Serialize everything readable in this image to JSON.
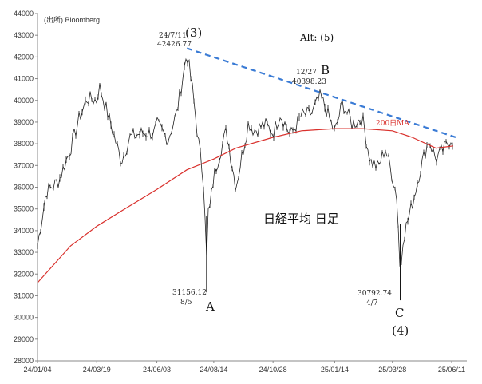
{
  "chart_data": {
    "type": "line",
    "title": "日経平均 日足",
    "source": "(出所) Bloomberg",
    "ylim": [
      28000,
      44000
    ],
    "yticks": [
      28000,
      29000,
      30000,
      31000,
      32000,
      33000,
      34000,
      35000,
      36000,
      37000,
      38000,
      39000,
      40000,
      41000,
      42000,
      43000,
      44000
    ],
    "ytick_labels": [
      "28000",
      "29000",
      "30000",
      "31000",
      "32000",
      "33000",
      "34000",
      "35000",
      "36000",
      "37000",
      "38000",
      "39000",
      "40000",
      "41000",
      "42000",
      "43000",
      "44000"
    ],
    "xticks": [
      "24/01/04",
      "24/03/19",
      "24/06/03",
      "24/08/14",
      "24/10/28",
      "25/01/14",
      "25/03/28",
      "25/06/11"
    ],
    "series": [
      {
        "name": "日経平均",
        "style": "candlestick",
        "color": "#000000",
        "x": [
          "24/01/04",
          "24/01/15",
          "24/01/31",
          "24/02/15",
          "24/02/26",
          "24/03/07",
          "24/03/19",
          "24/03/22",
          "24/04/05",
          "24/04/19",
          "24/04/30",
          "24/05/15",
          "24/05/31",
          "24/06/03",
          "24/06/17",
          "24/06/28",
          "24/07/11",
          "24/07/18",
          "24/07/25",
          "24/08/02",
          "24/08/05",
          "24/08/06",
          "24/08/09",
          "24/08/14",
          "24/08/21",
          "24/08/30",
          "24/09/11",
          "24/09/27",
          "24/10/04",
          "24/10/18",
          "24/10/28",
          "24/11/06",
          "24/11/19",
          "24/12/03",
          "24/12/16",
          "24/12/27",
          "25/01/06",
          "25/01/14",
          "25/01/24",
          "25/02/05",
          "25/02/18",
          "25/02/28",
          "25/03/10",
          "25/03/19",
          "25/03/28",
          "25/04/03",
          "25/04/07",
          "25/04/10",
          "25/04/22",
          "25/05/02",
          "25/05/13",
          "25/05/22",
          "25/06/02",
          "25/06/11",
          "25/06/13"
        ],
        "values": [
          33300,
          35800,
          36300,
          37800,
          39200,
          40100,
          40000,
          40700,
          39000,
          37200,
          38300,
          38500,
          38500,
          38900,
          38200,
          39400,
          42200,
          40500,
          38300,
          36000,
          32500,
          34800,
          35000,
          36500,
          37500,
          38600,
          36000,
          39000,
          38600,
          38900,
          38500,
          39400,
          38400,
          39300,
          39400,
          40200,
          39300,
          38500,
          39900,
          38900,
          39200,
          37200,
          36900,
          37800,
          36500,
          35500,
          31800,
          33600,
          35200,
          36800,
          38200,
          37300,
          37800,
          38300,
          38000
        ]
      },
      {
        "name": "200日MA",
        "style": "line",
        "color": "#d9302c",
        "x": [
          "24/01/04",
          "24/02/15",
          "24/03/19",
          "24/04/19",
          "24/06/03",
          "24/07/11",
          "24/08/14",
          "24/09/11",
          "24/10/28",
          "24/12/03",
          "25/01/14",
          "25/02/18",
          "25/03/28",
          "25/04/22",
          "25/05/22",
          "25/06/13"
        ],
        "values": [
          31600,
          33300,
          34200,
          34900,
          35900,
          36800,
          37300,
          37800,
          38300,
          38600,
          38700,
          38700,
          38600,
          38300,
          37800,
          37900
        ]
      }
    ],
    "trendline": {
      "from": {
        "x": "24/07/11",
        "y": 42400
      },
      "to": {
        "x": "25/06/16",
        "y": 38300
      },
      "color": "#3a7bd5",
      "style": "dashed"
    },
    "annotations": [
      {
        "label": "24/7/11",
        "x": "24/07/11",
        "y": 42426.77
      },
      {
        "label": "42426.77",
        "x": "24/07/11",
        "y": 42426.77
      },
      {
        "label": "(3)",
        "x": "24/07/11",
        "y": 42426.77
      },
      {
        "label": "Alt: (5)",
        "x": "24/10/28",
        "y": 42800
      },
      {
        "label": "12/27",
        "x": "24/12/27",
        "y": 40398.23
      },
      {
        "label": "40398.23",
        "x": "24/12/27",
        "y": 40398.23
      },
      {
        "label": "B",
        "x": "24/12/27",
        "y": 40398.23
      },
      {
        "label": "200日MA",
        "x": "25/03/10",
        "y": 38700
      },
      {
        "label": "31156.12",
        "x": "24/08/05",
        "y": 31156.12
      },
      {
        "label": "8/5",
        "x": "24/08/05",
        "y": 31156.12
      },
      {
        "label": "A",
        "x": "24/08/05",
        "y": 31156.12
      },
      {
        "label": "30792.74",
        "x": "25/04/07",
        "y": 30792.74
      },
      {
        "label": "4/7",
        "x": "25/04/07",
        "y": 30792.74
      },
      {
        "label": "C",
        "x": "25/04/07",
        "y": 30792.74
      },
      {
        "label": "(4)",
        "x": "25/04/07",
        "y": 30792.74
      }
    ],
    "grid": false,
    "legend": "none"
  }
}
